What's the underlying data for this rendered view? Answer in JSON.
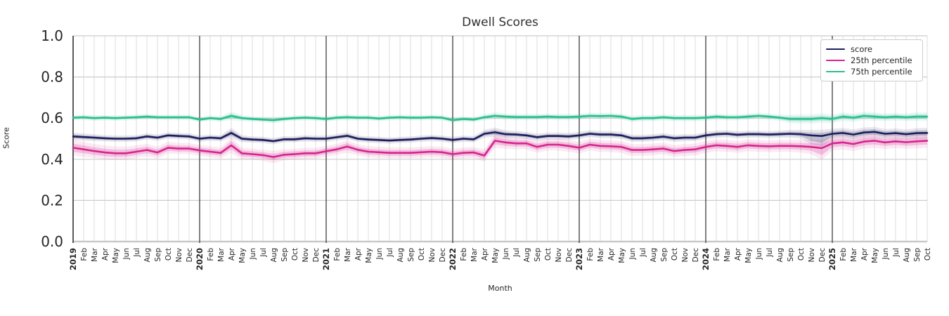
{
  "chart_data": {
    "type": "line",
    "title": "Dwell Scores",
    "xlabel": "Month",
    "ylabel": "Score",
    "ylim": [
      0.0,
      1.0
    ],
    "yticks": [
      0.0,
      0.2,
      0.4,
      0.6,
      0.8,
      1.0
    ],
    "grid": true,
    "legend_position": "upper right",
    "x_labels": [
      "2019",
      "Feb",
      "Mar",
      "Apr",
      "May",
      "Jun",
      "Jul",
      "Aug",
      "Sep",
      "Oct",
      "Nov",
      "Dec",
      "2020",
      "Feb",
      "Mar",
      "Apr",
      "May",
      "Jun",
      "Jul",
      "Aug",
      "Sep",
      "Oct",
      "Nov",
      "Dec",
      "2021",
      "Feb",
      "Mar",
      "Apr",
      "May",
      "Jun",
      "Jul",
      "Aug",
      "Sep",
      "Oct",
      "Nov",
      "Dec",
      "2022",
      "Feb",
      "Mar",
      "Apr",
      "May",
      "Jun",
      "Jul",
      "Aug",
      "Sep",
      "Oct",
      "Nov",
      "Dec",
      "2023",
      "Feb",
      "Mar",
      "Apr",
      "May",
      "Jun",
      "Jul",
      "Aug",
      "Sep",
      "Oct",
      "Nov",
      "Dec",
      "2024",
      "Feb",
      "Mar",
      "Apr",
      "May",
      "Jun",
      "Jul",
      "Aug",
      "Sep",
      "Oct",
      "Nov",
      "Dec",
      "2025",
      "Feb",
      "Mar",
      "Apr",
      "May",
      "Jun",
      "Jul",
      "Aug",
      "Sep",
      "Oct"
    ],
    "year_line_indices": [
      12,
      24,
      36,
      48,
      60,
      72
    ],
    "series": [
      {
        "name": "score",
        "color": "#1e1e5c",
        "band_alpha": 0.2,
        "values": [
          0.511,
          0.508,
          0.505,
          0.502,
          0.5,
          0.5,
          0.502,
          0.511,
          0.505,
          0.516,
          0.513,
          0.511,
          0.5,
          0.505,
          0.502,
          0.528,
          0.5,
          0.496,
          0.494,
          0.488,
          0.497,
          0.497,
          0.502,
          0.5,
          0.5,
          0.507,
          0.514,
          0.5,
          0.496,
          0.494,
          0.491,
          0.494,
          0.496,
          0.5,
          0.503,
          0.5,
          0.494,
          0.5,
          0.497,
          0.524,
          0.531,
          0.522,
          0.52,
          0.516,
          0.507,
          0.513,
          0.513,
          0.511,
          0.516,
          0.524,
          0.52,
          0.52,
          0.516,
          0.502,
          0.502,
          0.505,
          0.51,
          0.502,
          0.505,
          0.505,
          0.516,
          0.522,
          0.524,
          0.519,
          0.522,
          0.522,
          0.52,
          0.522,
          0.524,
          0.522,
          0.516,
          0.513,
          0.524,
          0.528,
          0.52,
          0.53,
          0.533,
          0.524,
          0.527,
          0.522,
          0.527,
          0.528
        ],
        "band_width": [
          0.01,
          0.009,
          0.009,
          0.008,
          0.008,
          0.008,
          0.008,
          0.008,
          0.008,
          0.008,
          0.008,
          0.008,
          0.008,
          0.008,
          0.008,
          0.013,
          0.009,
          0.008,
          0.008,
          0.008,
          0.008,
          0.008,
          0.008,
          0.008,
          0.008,
          0.008,
          0.009,
          0.008,
          0.008,
          0.008,
          0.008,
          0.008,
          0.008,
          0.008,
          0.008,
          0.008,
          0.008,
          0.008,
          0.008,
          0.01,
          0.012,
          0.01,
          0.009,
          0.009,
          0.009,
          0.009,
          0.009,
          0.009,
          0.009,
          0.009,
          0.009,
          0.009,
          0.009,
          0.009,
          0.009,
          0.009,
          0.009,
          0.009,
          0.009,
          0.009,
          0.009,
          0.009,
          0.009,
          0.009,
          0.009,
          0.009,
          0.009,
          0.009,
          0.01,
          0.011,
          0.014,
          0.016,
          0.013,
          0.013,
          0.013,
          0.013,
          0.013,
          0.012,
          0.012,
          0.012,
          0.013,
          0.013
        ],
        "band_lo_extra": {
          "70": 0.012,
          "71": 0.018
        }
      },
      {
        "name": "25th percentile",
        "color": "#d6248f",
        "band_alpha": 0.22,
        "values": [
          0.456,
          0.448,
          0.44,
          0.433,
          0.429,
          0.429,
          0.437,
          0.445,
          0.433,
          0.456,
          0.452,
          0.452,
          0.443,
          0.437,
          0.431,
          0.468,
          0.429,
          0.425,
          0.42,
          0.411,
          0.422,
          0.425,
          0.429,
          0.429,
          0.439,
          0.448,
          0.462,
          0.446,
          0.437,
          0.434,
          0.431,
          0.431,
          0.431,
          0.434,
          0.437,
          0.434,
          0.425,
          0.431,
          0.433,
          0.418,
          0.49,
          0.482,
          0.477,
          0.477,
          0.46,
          0.471,
          0.471,
          0.465,
          0.456,
          0.471,
          0.465,
          0.463,
          0.46,
          0.445,
          0.445,
          0.448,
          0.452,
          0.44,
          0.445,
          0.448,
          0.46,
          0.468,
          0.465,
          0.46,
          0.468,
          0.465,
          0.463,
          0.465,
          0.465,
          0.463,
          0.46,
          0.454,
          0.477,
          0.482,
          0.474,
          0.486,
          0.49,
          0.482,
          0.487,
          0.483,
          0.487,
          0.49
        ],
        "band_width": [
          0.02,
          0.019,
          0.018,
          0.018,
          0.017,
          0.017,
          0.016,
          0.016,
          0.015,
          0.015,
          0.014,
          0.014,
          0.014,
          0.014,
          0.014,
          0.02,
          0.015,
          0.014,
          0.014,
          0.016,
          0.014,
          0.014,
          0.014,
          0.014,
          0.014,
          0.014,
          0.016,
          0.014,
          0.014,
          0.014,
          0.014,
          0.014,
          0.014,
          0.014,
          0.014,
          0.014,
          0.014,
          0.014,
          0.014,
          0.016,
          0.018,
          0.016,
          0.015,
          0.015,
          0.015,
          0.015,
          0.015,
          0.015,
          0.015,
          0.015,
          0.015,
          0.015,
          0.015,
          0.015,
          0.015,
          0.015,
          0.015,
          0.015,
          0.015,
          0.015,
          0.015,
          0.015,
          0.015,
          0.015,
          0.015,
          0.015,
          0.015,
          0.015,
          0.015,
          0.016,
          0.018,
          0.022,
          0.018,
          0.018,
          0.018,
          0.018,
          0.018,
          0.017,
          0.017,
          0.017,
          0.018,
          0.018
        ],
        "band_lo_extra": {
          "71": 0.012
        }
      },
      {
        "name": "75th percentile",
        "color": "#2bbf8f",
        "band_alpha": 0.25,
        "values": [
          0.602,
          0.604,
          0.6,
          0.602,
          0.6,
          0.602,
          0.604,
          0.607,
          0.604,
          0.604,
          0.604,
          0.604,
          0.593,
          0.6,
          0.596,
          0.611,
          0.6,
          0.596,
          0.593,
          0.59,
          0.596,
          0.6,
          0.602,
          0.6,
          0.596,
          0.602,
          0.604,
          0.602,
          0.602,
          0.598,
          0.602,
          0.604,
          0.602,
          0.602,
          0.604,
          0.602,
          0.59,
          0.596,
          0.593,
          0.604,
          0.611,
          0.607,
          0.605,
          0.605,
          0.605,
          0.607,
          0.605,
          0.605,
          0.607,
          0.611,
          0.61,
          0.611,
          0.607,
          0.596,
          0.6,
          0.6,
          0.604,
          0.6,
          0.6,
          0.6,
          0.602,
          0.607,
          0.604,
          0.604,
          0.607,
          0.611,
          0.607,
          0.602,
          0.596,
          0.596,
          0.596,
          0.6,
          0.596,
          0.607,
          0.602,
          0.611,
          0.607,
          0.604,
          0.607,
          0.604,
          0.607,
          0.607
        ],
        "band_width": [
          0.007,
          0.007,
          0.007,
          0.007,
          0.007,
          0.007,
          0.007,
          0.007,
          0.007,
          0.007,
          0.007,
          0.007,
          0.007,
          0.007,
          0.007,
          0.011,
          0.008,
          0.007,
          0.007,
          0.008,
          0.007,
          0.007,
          0.007,
          0.007,
          0.007,
          0.007,
          0.008,
          0.007,
          0.007,
          0.007,
          0.007,
          0.007,
          0.007,
          0.007,
          0.007,
          0.007,
          0.007,
          0.007,
          0.007,
          0.008,
          0.009,
          0.008,
          0.008,
          0.008,
          0.008,
          0.008,
          0.008,
          0.008,
          0.008,
          0.008,
          0.008,
          0.008,
          0.008,
          0.008,
          0.008,
          0.008,
          0.008,
          0.008,
          0.008,
          0.008,
          0.008,
          0.008,
          0.008,
          0.008,
          0.008,
          0.008,
          0.008,
          0.008,
          0.011,
          0.012,
          0.012,
          0.012,
          0.011,
          0.011,
          0.011,
          0.011,
          0.011,
          0.01,
          0.01,
          0.01,
          0.011,
          0.011
        ],
        "band_lo_extra": {}
      }
    ]
  },
  "style_colors": {
    "grid_major_h": "#cccccc",
    "grid_minor_v": "#dedede",
    "year_line": "#3d3d3d",
    "left_spine": "#262626",
    "baseline": "#c9c9c9",
    "tick_text": "#262626",
    "title_text": "#303030"
  }
}
